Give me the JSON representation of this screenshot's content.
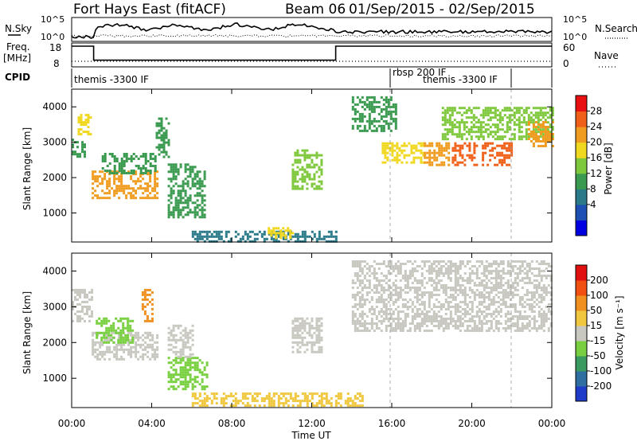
{
  "header": {
    "title": "Fort Hays East (fitACF)",
    "beam": "Beam 06",
    "date_range": "01/Sep/2015 - 02/Sep/2015"
  },
  "strip": {
    "nsky_label": "N.Sky",
    "nsearch_label": "N.Search",
    "freq_label_1": "Freq.",
    "freq_label_2": "[MHz]",
    "nave_label": "Nave",
    "cpid_label": "CPID",
    "nsky_ticks": [
      "10^5",
      "10^0"
    ],
    "nsearch_ticks": [
      "10^5",
      "10^0"
    ],
    "freq_ticks": [
      "18",
      "8"
    ],
    "nave_ticks": [
      "60",
      "0"
    ],
    "cpid_segments": [
      "themis -3300 IF",
      "rbsp 200 IF",
      "themis -3300 IF"
    ]
  },
  "power_panel": {
    "ylabel": "Slant Range [km]",
    "yticks": [
      "4000",
      "3000",
      "2000",
      "1000"
    ],
    "colorbar_label": "Power [dB]",
    "colorbar_ticks": [
      "28",
      "24",
      "20",
      "16",
      "12",
      "8",
      "4"
    ],
    "colors": [
      "#0000e0",
      "#1e50b4",
      "#2a7a8a",
      "#3a9a50",
      "#7ec83c",
      "#f0d820",
      "#f09c20",
      "#f06018",
      "#e81010"
    ]
  },
  "velocity_panel": {
    "ylabel": "Slant Range [km]",
    "yticks": [
      "4000",
      "3000",
      "2000",
      "1000"
    ],
    "colorbar_label": "Velocity [m s⁻¹]",
    "colorbar_ticks": [
      "200",
      "100",
      "50",
      "15",
      "-15",
      "-50",
      "-100",
      "-200"
    ],
    "colors": [
      "#1e3cc8",
      "#2e6ea0",
      "#3a9a60",
      "#78d040",
      "#c8c8c0",
      "#f0c840",
      "#f09020",
      "#f05010",
      "#e01010"
    ]
  },
  "xaxis": {
    "label": "Time UT",
    "ticks": [
      "00:00",
      "04:00",
      "08:00",
      "12:00",
      "16:00",
      "20:00",
      "00:00"
    ]
  },
  "chart_data": {
    "type": "heatmap",
    "title": "Fort Hays East (fitACF) Beam 06 01/Sep/2015 - 02/Sep/2015",
    "xlabel": "Time UT",
    "ylabel": "Slant Range [km]",
    "xlim_hours": [
      0,
      24
    ],
    "ylim_km": [
      180,
      4500
    ],
    "grid": false,
    "frequency_steps": [
      {
        "start_hour": 0.0,
        "end_hour": 1.1,
        "freq_mhz": 18
      },
      {
        "start_hour": 1.1,
        "end_hour": 13.2,
        "freq_mhz": 10
      },
      {
        "start_hour": 13.2,
        "end_hour": 24.0,
        "freq_mhz": 18
      }
    ],
    "cpid_modes": [
      {
        "start_hour": 0.0,
        "end_hour": 16.0,
        "mode": "themis -3300 IF"
      },
      {
        "start_hour": 16.0,
        "end_hour": 22.0,
        "mode": "rbsp 200 IF"
      },
      {
        "start_hour": 22.0,
        "end_hour": 24.0,
        "mode": "themis -3300 IF"
      }
    ],
    "power_db_regions": [
      {
        "t_start": 0.0,
        "t_end": 0.6,
        "r_min": 2600,
        "r_max": 3100,
        "power_db": 14
      },
      {
        "t_start": 0.3,
        "t_end": 1.0,
        "r_min": 3200,
        "r_max": 3800,
        "power_db": 18
      },
      {
        "t_start": 1.0,
        "t_end": 4.3,
        "r_min": 1400,
        "r_max": 2200,
        "power_db": 24
      },
      {
        "t_start": 1.5,
        "t_end": 4.2,
        "r_min": 2100,
        "r_max": 2700,
        "power_db": 12
      },
      {
        "t_start": 4.2,
        "t_end": 4.8,
        "r_min": 2600,
        "r_max": 3700,
        "power_db": 14
      },
      {
        "t_start": 4.8,
        "t_end": 6.6,
        "r_min": 900,
        "r_max": 2400,
        "power_db": 12
      },
      {
        "t_start": 6.0,
        "t_end": 13.2,
        "r_min": 200,
        "r_max": 500,
        "power_db": 10
      },
      {
        "t_start": 9.8,
        "t_end": 11.0,
        "r_min": 300,
        "r_max": 600,
        "power_db": 20
      },
      {
        "t_start": 11.0,
        "t_end": 12.5,
        "r_min": 1700,
        "r_max": 2800,
        "power_db": 16
      },
      {
        "t_start": 14.0,
        "t_end": 16.2,
        "r_min": 3300,
        "r_max": 4300,
        "power_db": 14
      },
      {
        "t_start": 15.5,
        "t_end": 17.6,
        "r_min": 2400,
        "r_max": 3000,
        "power_db": 18
      },
      {
        "t_start": 17.6,
        "t_end": 18.8,
        "r_min": 2350,
        "r_max": 3000,
        "power_db": 24
      },
      {
        "t_start": 19.0,
        "t_end": 20.3,
        "r_min": 2350,
        "r_max": 3000,
        "power_db": 26
      },
      {
        "t_start": 20.5,
        "t_end": 22.0,
        "r_min": 2350,
        "r_max": 3000,
        "power_db": 26
      },
      {
        "t_start": 18.5,
        "t_end": 24.0,
        "r_min": 3100,
        "r_max": 4000,
        "power_db": 16
      },
      {
        "t_start": 22.8,
        "t_end": 24.0,
        "r_min": 2900,
        "r_max": 3600,
        "power_db": 22
      }
    ],
    "velocity_regions": [
      {
        "t_start": 0.0,
        "t_end": 1.0,
        "r_min": 2600,
        "r_max": 3500,
        "velocity_ms": 0
      },
      {
        "t_start": 1.0,
        "t_end": 4.3,
        "r_min": 1500,
        "r_max": 2300,
        "velocity_ms": 0
      },
      {
        "t_start": 1.2,
        "t_end": 3.0,
        "r_min": 2000,
        "r_max": 2700,
        "velocity_ms": 50
      },
      {
        "t_start": 3.5,
        "t_end": 4.0,
        "r_min": 2600,
        "r_max": 3500,
        "velocity_ms": -100
      },
      {
        "t_start": 4.8,
        "t_end": 6.8,
        "r_min": 700,
        "r_max": 1600,
        "velocity_ms": 50
      },
      {
        "t_start": 4.8,
        "t_end": 6.0,
        "r_min": 1600,
        "r_max": 2500,
        "velocity_ms": 0
      },
      {
        "t_start": 6.0,
        "t_end": 14.5,
        "r_min": 200,
        "r_max": 600,
        "velocity_ms": -30
      },
      {
        "t_start": 11.0,
        "t_end": 12.5,
        "r_min": 1700,
        "r_max": 2700,
        "velocity_ms": 0
      },
      {
        "t_start": 14.0,
        "t_end": 24.0,
        "r_min": 2300,
        "r_max": 4300,
        "velocity_ms": 0
      }
    ]
  }
}
